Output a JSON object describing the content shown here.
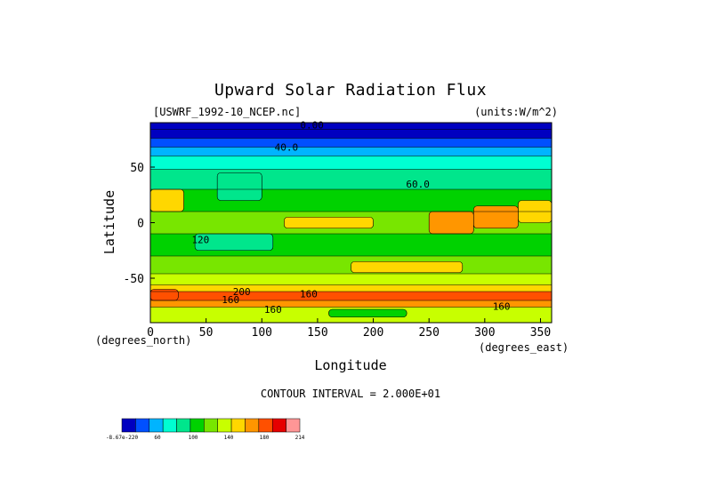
{
  "chart_data": {
    "type": "heatmap",
    "title": "Upward Solar Radiation Flux",
    "source_label": "[USWRF_1992-10_NCEP.nc]",
    "units_label": "(units:W/m^2)",
    "xlabel": "Longitude",
    "ylabel": "Latitude",
    "x_unit_label": "(degrees_east)",
    "y_unit_label": "(degrees_north)",
    "xlim": [
      0,
      360
    ],
    "ylim": [
      -90,
      90
    ],
    "x_ticks": [
      0,
      50,
      100,
      150,
      200,
      250,
      300,
      350
    ],
    "y_ticks": [
      50,
      0,
      -50
    ],
    "contour_interval_text": "CONTOUR INTERVAL = 2.000E+01",
    "contour_labels": [
      {
        "text": "0.00",
        "lon": 145,
        "lat": 88
      },
      {
        "text": "40.0",
        "lon": 122,
        "lat": 68
      },
      {
        "text": "60.0",
        "lon": 240,
        "lat": 35
      },
      {
        "text": "120",
        "lon": 45,
        "lat": -15
      },
      {
        "text": "200",
        "lon": 82,
        "lat": -62
      },
      {
        "text": "160",
        "lon": 142,
        "lat": -64
      },
      {
        "text": "160",
        "lon": 72,
        "lat": -69
      },
      {
        "text": "160",
        "lon": 110,
        "lat": -78
      },
      {
        "text": "160",
        "lon": 315,
        "lat": -75
      }
    ],
    "colorbar": {
      "colors": [
        "#0000c0",
        "#0050ff",
        "#00b4ff",
        "#00ffd2",
        "#00e68c",
        "#00d200",
        "#78e600",
        "#c8ff00",
        "#ffd700",
        "#ff9600",
        "#ff5000",
        "#e60000",
        "#ff9696"
      ],
      "tick_labels": [
        "-8.67e-220",
        "60",
        "100",
        "140",
        "180",
        "214"
      ]
    },
    "latitude_bands": [
      {
        "lat_min": 84,
        "lat_max": 90,
        "value": 0
      },
      {
        "lat_min": 76,
        "lat_max": 84,
        "value": 15
      },
      {
        "lat_min": 68,
        "lat_max": 76,
        "value": 35
      },
      {
        "lat_min": 60,
        "lat_max": 68,
        "value": 55
      },
      {
        "lat_min": 48,
        "lat_max": 60,
        "value": 65
      },
      {
        "lat_min": 30,
        "lat_max": 48,
        "value": 95
      },
      {
        "lat_min": 10,
        "lat_max": 30,
        "value": 105
      },
      {
        "lat_min": -10,
        "lat_max": 10,
        "value": 120
      },
      {
        "lat_min": -30,
        "lat_max": -10,
        "value": 115
      },
      {
        "lat_min": -46,
        "lat_max": -30,
        "value": 130
      },
      {
        "lat_min": -56,
        "lat_max": -46,
        "value": 145
      },
      {
        "lat_min": -62,
        "lat_max": -56,
        "value": 170
      },
      {
        "lat_min": -70,
        "lat_max": -62,
        "value": 205
      },
      {
        "lat_min": -76,
        "lat_max": -70,
        "value": 190
      },
      {
        "lat_min": -90,
        "lat_max": -76,
        "value": 150
      }
    ],
    "patches": [
      {
        "lon": [
          0,
          25
        ],
        "lat": [
          -70,
          -60
        ],
        "value": 210
      },
      {
        "lon": [
          250,
          290
        ],
        "lat": [
          -10,
          10
        ],
        "value": 185
      },
      {
        "lon": [
          290,
          330
        ],
        "lat": [
          -5,
          15
        ],
        "value": 195
      },
      {
        "lon": [
          330,
          360
        ],
        "lat": [
          0,
          20
        ],
        "value": 160
      },
      {
        "lon": [
          40,
          110
        ],
        "lat": [
          -25,
          -10
        ],
        "value": 95
      },
      {
        "lon": [
          60,
          100
        ],
        "lat": [
          20,
          45
        ],
        "value": 85
      },
      {
        "lon": [
          120,
          200
        ],
        "lat": [
          -5,
          5
        ],
        "value": 165
      },
      {
        "lon": [
          180,
          280
        ],
        "lat": [
          -45,
          -35
        ],
        "value": 160
      },
      {
        "lon": [
          160,
          230
        ],
        "lat": [
          -85,
          -78
        ],
        "value": 110
      },
      {
        "lon": [
          0,
          30
        ],
        "lat": [
          10,
          30
        ],
        "value": 160
      }
    ]
  }
}
